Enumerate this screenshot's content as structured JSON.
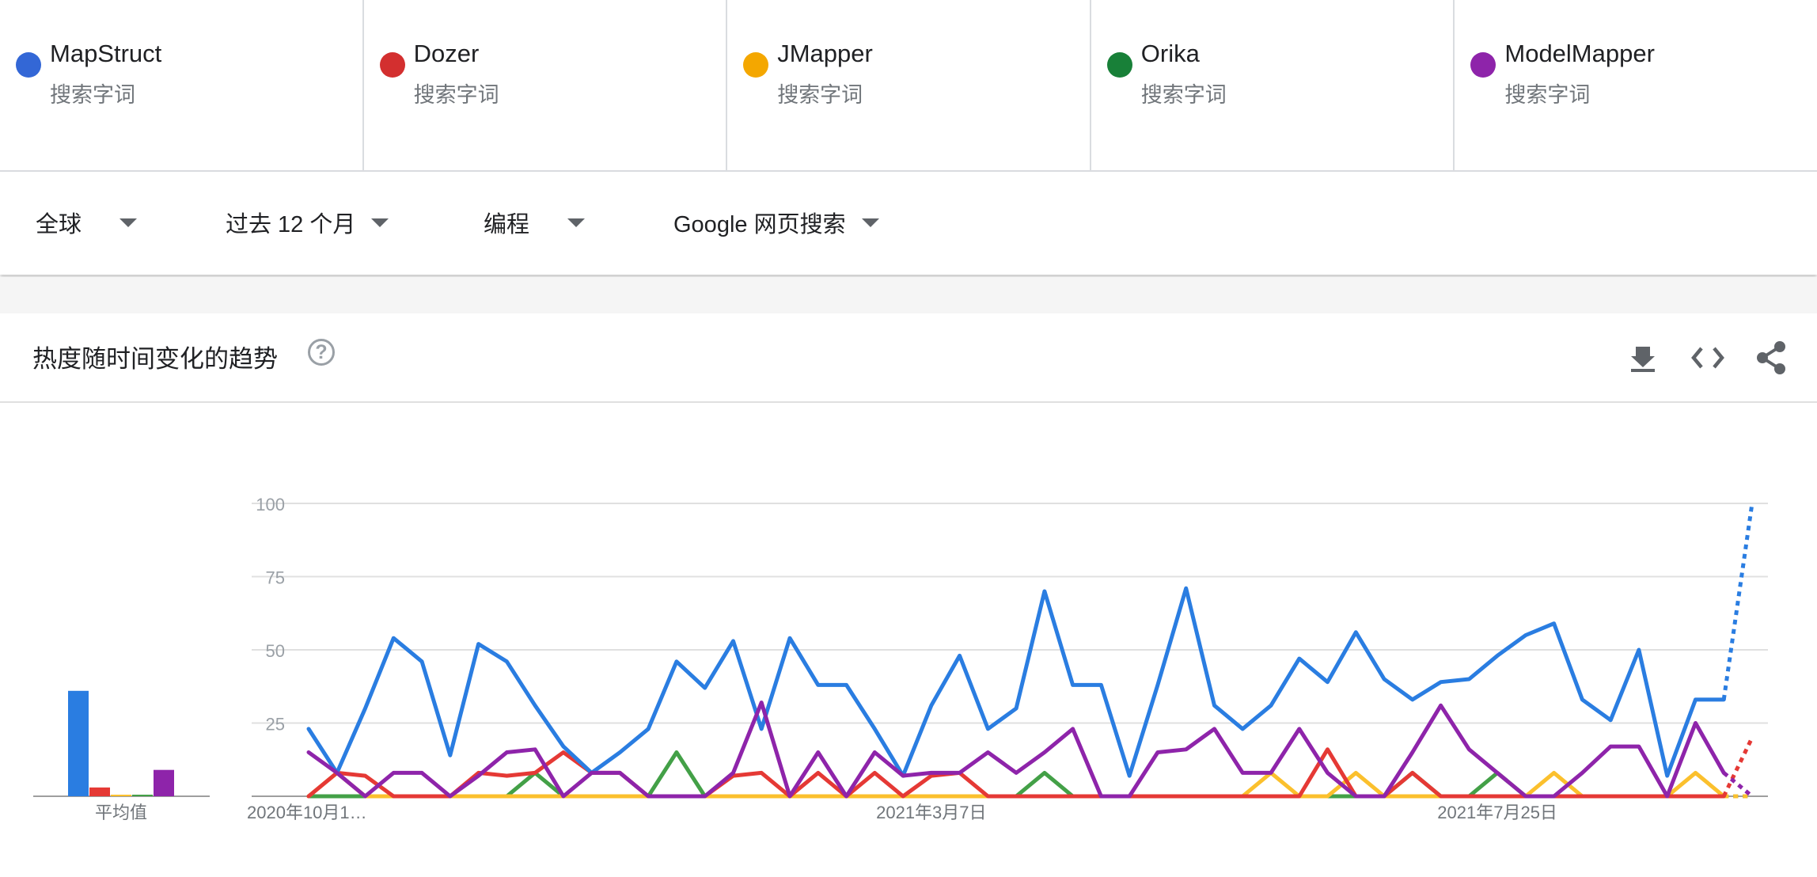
{
  "terms": [
    {
      "name": "MapStruct",
      "sub": "搜索字词",
      "color": "#3367d6"
    },
    {
      "name": "Dozer",
      "sub": "搜索字词",
      "color": "#d32f2f"
    },
    {
      "name": "JMapper",
      "sub": "搜索字词",
      "color": "#f4a700"
    },
    {
      "name": "Orika",
      "sub": "搜索字词",
      "color": "#188038"
    },
    {
      "name": "ModelMapper",
      "sub": "搜索字词",
      "color": "#8e24aa"
    }
  ],
  "filters": {
    "region": "全球",
    "time": "过去 12 个月",
    "category": "编程",
    "search_type": "Google 网页搜索"
  },
  "widget": {
    "title": "热度随时间变化的趋势",
    "help_symbol": "?",
    "icons": [
      "download-icon",
      "embed-code-icon",
      "share-icon"
    ]
  },
  "chart_data": {
    "type": "line",
    "ylim": [
      0,
      100
    ],
    "yticks": [
      25,
      50,
      75,
      100
    ],
    "grid": true,
    "x_tick_labels": [
      {
        "index": 0,
        "label": "2020年10月1…"
      },
      {
        "index": 22,
        "label": "2021年3月7日"
      },
      {
        "index": 42,
        "label": "2021年7月25日"
      }
    ],
    "partial_last_point": true,
    "average_label": "平均值",
    "averages": [
      {
        "name": "MapStruct",
        "value": 36,
        "color": "#2a7de1"
      },
      {
        "name": "Dozer",
        "value": 3,
        "color": "#e53935"
      },
      {
        "name": "JMapper",
        "value": 0.5,
        "color": "#fbc02d"
      },
      {
        "name": "Orika",
        "value": 0.5,
        "color": "#43a047"
      },
      {
        "name": "ModelMapper",
        "value": 9,
        "color": "#8e24aa"
      }
    ],
    "series": [
      {
        "name": "MapStruct",
        "color": "#2a7de1",
        "values": [
          23,
          8,
          30,
          54,
          46,
          14,
          52,
          46,
          31,
          17,
          8,
          15,
          23,
          46,
          37,
          53,
          23,
          54,
          38,
          38,
          23,
          7,
          31,
          48,
          23,
          30,
          70,
          38,
          38,
          7,
          38,
          71,
          31,
          23,
          31,
          47,
          39,
          56,
          40,
          33,
          39,
          40,
          48,
          55,
          59,
          33,
          26,
          50,
          7,
          33,
          33,
          100
        ]
      },
      {
        "name": "Dozer",
        "color": "#e53935",
        "values": [
          0,
          8,
          7,
          0,
          0,
          0,
          8,
          7,
          8,
          15,
          8,
          8,
          0,
          0,
          0,
          7,
          8,
          0,
          8,
          0,
          8,
          0,
          7,
          8,
          0,
          0,
          0,
          0,
          0,
          0,
          0,
          0,
          0,
          0,
          0,
          0,
          16,
          0,
          0,
          8,
          0,
          0,
          0,
          0,
          0,
          0,
          0,
          0,
          0,
          0,
          0,
          20
        ]
      },
      {
        "name": "JMapper",
        "color": "#fbc02d",
        "values": [
          0,
          8,
          0,
          0,
          0,
          0,
          0,
          0,
          0,
          0,
          0,
          0,
          0,
          0,
          0,
          0,
          0,
          0,
          0,
          0,
          0,
          0,
          0,
          0,
          0,
          0,
          0,
          0,
          0,
          0,
          0,
          0,
          0,
          0,
          8,
          0,
          0,
          8,
          0,
          0,
          0,
          0,
          0,
          0,
          8,
          0,
          0,
          0,
          0,
          8,
          0,
          0
        ]
      },
      {
        "name": "Orika",
        "color": "#43a047",
        "values": [
          0,
          0,
          0,
          0,
          0,
          0,
          0,
          0,
          8,
          0,
          0,
          0,
          0,
          15,
          0,
          0,
          0,
          0,
          0,
          0,
          0,
          0,
          0,
          0,
          0,
          0,
          8,
          0,
          0,
          0,
          0,
          0,
          0,
          0,
          0,
          0,
          0,
          0,
          0,
          8,
          0,
          0,
          8,
          0,
          0,
          0,
          0,
          0,
          0,
          0,
          0,
          0
        ]
      },
      {
        "name": "ModelMapper",
        "color": "#8e24aa",
        "values": [
          15,
          8,
          0,
          8,
          8,
          0,
          7,
          15,
          16,
          0,
          8,
          8,
          0,
          0,
          0,
          8,
          32,
          0,
          15,
          0,
          15,
          7,
          8,
          8,
          15,
          8,
          15,
          23,
          0,
          0,
          15,
          16,
          23,
          8,
          8,
          23,
          8,
          0,
          0,
          15,
          31,
          16,
          8,
          0,
          0,
          8,
          17,
          17,
          0,
          25,
          8,
          0
        ]
      }
    ]
  }
}
